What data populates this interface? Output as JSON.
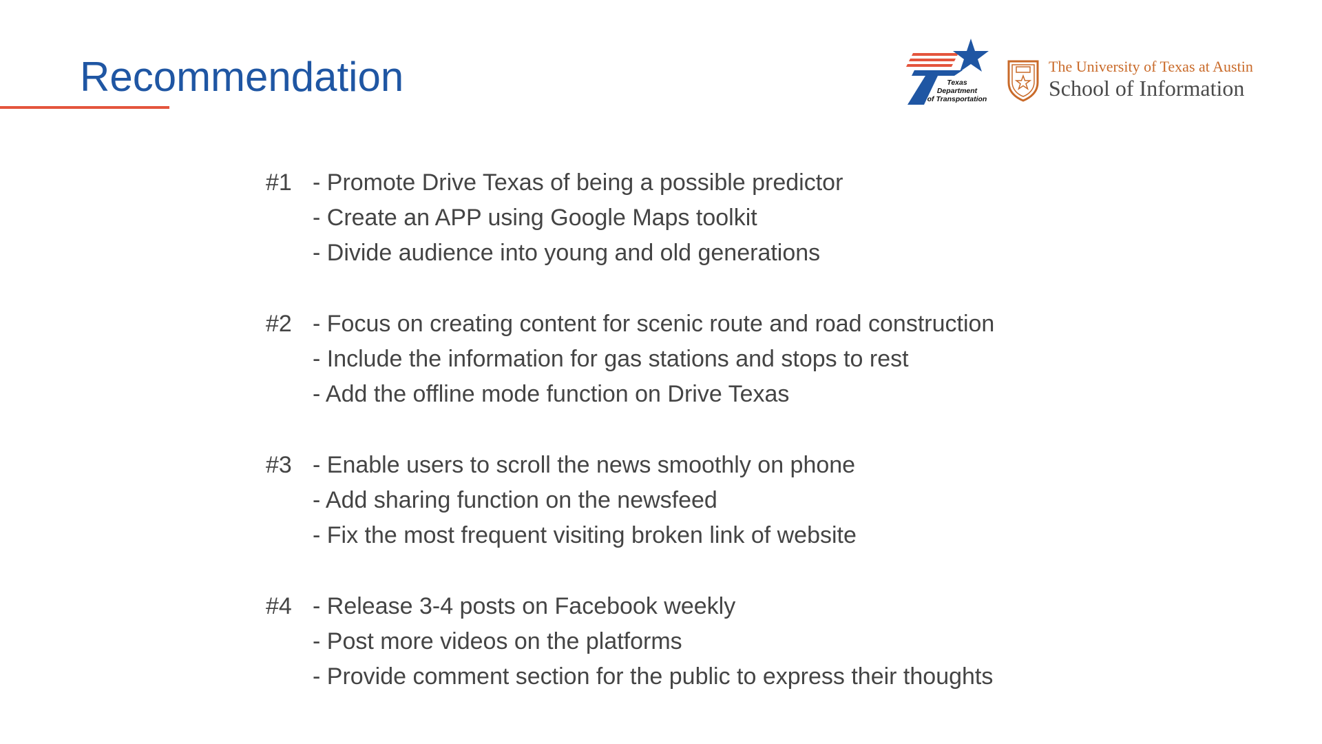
{
  "slide": {
    "title": "Recommendation",
    "colors": {
      "title": "#1f56a3",
      "rule": "#e4553d",
      "body_text": "#444444",
      "txdot_blue": "#1f56a3",
      "txdot_red": "#e4553d",
      "ut_orange": "#c96a29"
    }
  },
  "logos": {
    "txdot": {
      "icon": "txdot-star-logo-icon",
      "line1": "Texas",
      "line2": "Department",
      "line3": "of Transportation"
    },
    "ut": {
      "icon": "ut-seal-icon",
      "line1": "The University of Texas at Austin",
      "line2": "School of Information"
    }
  },
  "recommendations": [
    {
      "number": "#1",
      "items": [
        "- Promote Drive Texas of being a possible predictor",
        "- Create an APP using Google Maps toolkit",
        "- Divide audience into young and old generations"
      ]
    },
    {
      "number": "#2",
      "items": [
        "- Focus on creating content for scenic route and road construction",
        "- Include the information for gas stations and stops to rest",
        "- Add the offline mode function on Drive Texas"
      ]
    },
    {
      "number": "#3",
      "items": [
        "- Enable users to scroll the news smoothly on phone",
        "- Add sharing function on the newsfeed",
        "- Fix the most frequent visiting broken link of website"
      ]
    },
    {
      "number": "#4",
      "items": [
        "- Release 3-4 posts on Facebook weekly",
        "- Post more videos on the platforms",
        "- Provide comment section for the public to express their thoughts"
      ]
    }
  ]
}
